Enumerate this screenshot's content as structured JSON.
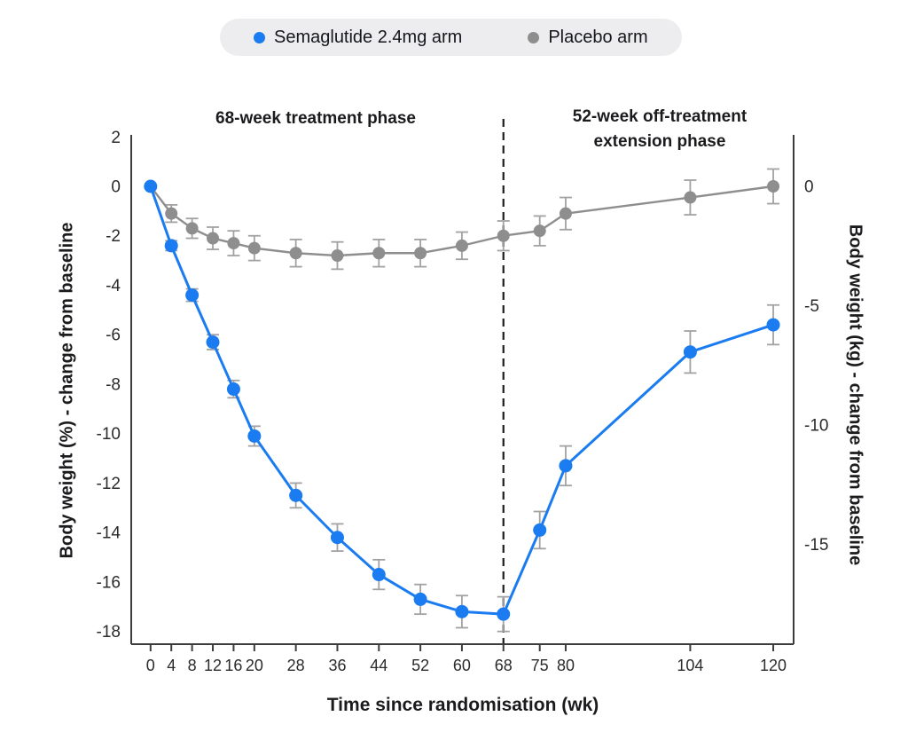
{
  "legend": {
    "background": "#ededef",
    "items": [
      {
        "label": "Semaglutide 2.4mg arm",
        "color": "#1a7cf0"
      },
      {
        "label": "Placebo arm",
        "color": "#8e8e8e"
      }
    ]
  },
  "annotations": {
    "treatment_phase": "68-week treatment phase",
    "extension_phase": "52-week off-treatment extension phase",
    "divider_week": 68
  },
  "chart_data": {
    "type": "line",
    "title": "",
    "xlabel": "Time since randomisation (wk)",
    "ylabel_left": "Body weight (%) - change from baseline",
    "ylabel_right": "Body weight (kg) - change from baseline",
    "x_ticks": [
      0,
      4,
      8,
      12,
      16,
      20,
      28,
      36,
      44,
      52,
      60,
      68,
      75,
      80,
      104,
      120
    ],
    "y_ticks_left": [
      2,
      0,
      -2,
      -4,
      -6,
      -8,
      -10,
      -12,
      -14,
      -16,
      -18
    ],
    "y_ticks_right": [
      0,
      -5,
      -10,
      -15
    ],
    "xlim": [
      -4,
      124
    ],
    "ylim_left": [
      -18.6,
      2
    ],
    "grid": false,
    "legend_position": "top-center",
    "axis_color": "#3c3c3c",
    "error_bar_color": "#a2a2a2",
    "divider": {
      "week": 68,
      "style": "dashed",
      "color": "#1c1c1c"
    },
    "x": [
      0,
      4,
      8,
      12,
      16,
      20,
      28,
      36,
      44,
      52,
      60,
      68,
      75,
      80,
      104,
      120
    ],
    "series": [
      {
        "name": "Semaglutide 2.4mg arm",
        "color": "#1a7cf0",
        "values": [
          0,
          -2.4,
          -4.4,
          -6.3,
          -8.2,
          -10.1,
          -12.5,
          -14.2,
          -15.7,
          -16.7,
          -17.2,
          -17.3,
          -13.9,
          -11.3,
          -6.7,
          -5.6
        ],
        "errors": [
          0,
          0.2,
          0.25,
          0.3,
          0.35,
          0.4,
          0.5,
          0.55,
          0.6,
          0.6,
          0.65,
          0.7,
          0.75,
          0.8,
          0.85,
          0.8
        ]
      },
      {
        "name": "Placebo arm",
        "color": "#8e8e8e",
        "values": [
          0,
          -1.1,
          -1.7,
          -2.1,
          -2.3,
          -2.5,
          -2.7,
          -2.8,
          -2.7,
          -2.7,
          -2.4,
          -2.0,
          -1.8,
          -1.1,
          -0.45,
          0
        ],
        "errors": [
          0,
          0.35,
          0.4,
          0.45,
          0.5,
          0.5,
          0.55,
          0.55,
          0.55,
          0.55,
          0.55,
          0.6,
          0.6,
          0.65,
          0.7,
          0.7
        ]
      }
    ]
  }
}
